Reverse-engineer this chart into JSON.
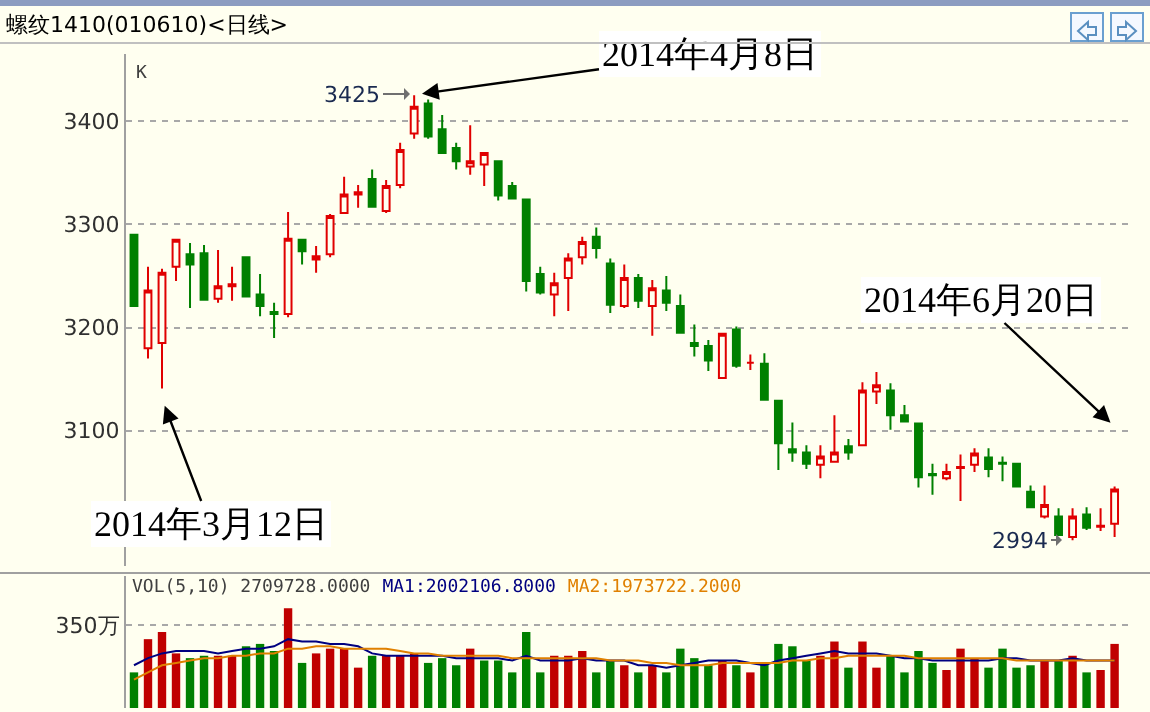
{
  "chart_data": [
    {
      "type": "candlestick",
      "title": "螺纹1410(010610)<日线>",
      "categories": [
        null,
        null,
        null,
        null,
        null,
        null,
        null,
        null,
        null,
        null,
        null,
        null,
        null,
        null,
        null,
        null,
        null,
        null,
        null,
        null,
        null,
        null,
        null,
        null,
        null,
        null,
        null,
        null,
        null,
        null,
        null,
        null,
        null,
        null,
        null,
        null,
        null,
        null,
        null,
        null,
        null,
        null,
        null,
        null,
        null,
        null,
        null,
        null,
        null,
        null,
        null,
        null,
        null,
        null,
        null,
        null,
        null,
        null,
        null,
        null,
        null,
        null,
        null,
        null,
        null,
        null,
        null,
        null,
        null,
        null,
        null
      ],
      "ohlc": [
        [
          3290,
          3290,
          3221,
          3221
        ],
        [
          3180,
          3259,
          3170,
          3236
        ],
        [
          3185,
          3257,
          3141,
          3253
        ],
        [
          3259,
          3285,
          3245,
          3285
        ],
        [
          3271,
          3282,
          3219,
          3261
        ],
        [
          3272,
          3280,
          3226,
          3227
        ],
        [
          3228,
          3275,
          3224,
          3240
        ],
        [
          3240,
          3259,
          3226,
          3242
        ],
        [
          3268,
          3268,
          3230,
          3230
        ],
        [
          3232,
          3252,
          3211,
          3221
        ],
        [
          3215,
          3224,
          3190,
          3213
        ],
        [
          3213,
          3312,
          3210,
          3286
        ],
        [
          3285,
          3285,
          3261,
          3274
        ],
        [
          3266,
          3279,
          3253,
          3269
        ],
        [
          3271,
          3310,
          3268,
          3308
        ],
        [
          3311,
          3346,
          3310,
          3329
        ],
        [
          3329,
          3338,
          3316,
          3331
        ],
        [
          3344,
          3353,
          3316,
          3317
        ],
        [
          3313,
          3343,
          3311,
          3337
        ],
        [
          3338,
          3379,
          3335,
          3372
        ],
        [
          3388,
          3425,
          3383,
          3414
        ],
        [
          3417,
          3421,
          3383,
          3385
        ],
        [
          3392,
          3406,
          3368,
          3369
        ],
        [
          3374,
          3379,
          3353,
          3361
        ],
        [
          3356,
          3396,
          3348,
          3361
        ],
        [
          3358,
          3369,
          3337,
          3369
        ],
        [
          3361,
          3361,
          3323,
          3328
        ],
        [
          3337,
          3341,
          3324,
          3325
        ],
        [
          3324,
          3324,
          3235,
          3245
        ],
        [
          3252,
          3259,
          3232,
          3234
        ],
        [
          3232,
          3253,
          3211,
          3243
        ],
        [
          3248,
          3272,
          3216,
          3267
        ],
        [
          3268,
          3288,
          3261,
          3283
        ],
        [
          3288,
          3297,
          3267,
          3277
        ],
        [
          3262,
          3267,
          3214,
          3222
        ],
        [
          3221,
          3261,
          3219,
          3248
        ],
        [
          3248,
          3252,
          3219,
          3226
        ],
        [
          3221,
          3246,
          3192,
          3238
        ],
        [
          3236,
          3250,
          3216,
          3224
        ],
        [
          3221,
          3232,
          3195,
          3195
        ],
        [
          3185,
          3203,
          3172,
          3182
        ],
        [
          3182,
          3188,
          3158,
          3168
        ],
        [
          3151,
          3194,
          3151,
          3194
        ],
        [
          3198,
          3201,
          3161,
          3163
        ],
        [
          3166,
          3174,
          3159,
          3166
        ],
        [
          3165,
          3175,
          3129,
          3130
        ],
        [
          3129,
          3129,
          3062,
          3088
        ],
        [
          3082,
          3108,
          3070,
          3079
        ],
        [
          3079,
          3086,
          3063,
          3068
        ],
        [
          3067,
          3086,
          3054,
          3075
        ],
        [
          3070,
          3115,
          3070,
          3079
        ],
        [
          3085,
          3092,
          3072,
          3079
        ],
        [
          3086,
          3147,
          3086,
          3139
        ],
        [
          3138,
          3157,
          3126,
          3144
        ],
        [
          3139,
          3146,
          3101,
          3115
        ],
        [
          3115,
          3125,
          3109,
          3109
        ],
        [
          3107,
          3107,
          3045,
          3055
        ],
        [
          3058,
          3068,
          3038,
          3057
        ],
        [
          3054,
          3068,
          3052,
          3060
        ],
        [
          3064,
          3077,
          3032,
          3065
        ],
        [
          3067,
          3083,
          3060,
          3078
        ],
        [
          3074,
          3083,
          3055,
          3063
        ],
        [
          3069,
          3075,
          3051,
          3068
        ],
        [
          3068,
          3068,
          3045,
          3046
        ],
        [
          3041,
          3047,
          3025,
          3026
        ],
        [
          3017,
          3047,
          3015,
          3028
        ],
        [
          3017,
          3025,
          2999,
          2999
        ],
        [
          2997,
          3025,
          2994,
          3017
        ],
        [
          3019,
          3026,
          3004,
          3006
        ],
        [
          3007,
          3025,
          3003,
          3008
        ],
        [
          3010,
          3046,
          2997,
          3043
        ]
      ],
      "ylim": [
        2969,
        3465
      ],
      "yticks": [
        3100,
        3200,
        3300,
        3400
      ],
      "grid": "y",
      "annotations": [
        "K",
        "2014年3月12日",
        "2014年4月8日",
        "3425",
        "2014年6月20日",
        "2994"
      ]
    },
    {
      "type": "bar",
      "categories": [
        null,
        null,
        null,
        null,
        null,
        null,
        null,
        null,
        null,
        null,
        null,
        null,
        null,
        null,
        null,
        null,
        null,
        null,
        null,
        null,
        null,
        null,
        null,
        null,
        null,
        null,
        null,
        null,
        null,
        null,
        null,
        null,
        null,
        null,
        null,
        null,
        null,
        null,
        null,
        null,
        null,
        null,
        null,
        null,
        null,
        null,
        null,
        null,
        null,
        null,
        null,
        null,
        null,
        null,
        null,
        null,
        null,
        null,
        null,
        null,
        null,
        null,
        null,
        null,
        null,
        null,
        null,
        null,
        null,
        null,
        null
      ],
      "series": [
        {
          "type": "bar",
          "values": [
            150,
            290,
            320,
            230,
            210,
            220,
            220,
            220,
            260,
            270,
            240,
            420,
            190,
            230,
            250,
            250,
            170,
            220,
            220,
            220,
            230,
            190,
            210,
            180,
            250,
            200,
            200,
            150,
            320,
            150,
            220,
            220,
            240,
            150,
            200,
            180,
            150,
            180,
            150,
            250,
            210,
            180,
            200,
            180,
            150,
            190,
            270,
            260,
            200,
            220,
            280,
            170,
            280,
            170,
            220,
            150,
            240,
            190,
            160,
            250,
            210,
            170,
            250,
            170,
            180,
            200,
            200,
            220,
            150,
            160,
            270
          ],
          "colors": [
            "#008000",
            "#c00000",
            "#c00000",
            "#c00000",
            "#008000",
            "#008000",
            "#c00000",
            "#c00000",
            "#008000",
            "#008000",
            "#008000",
            "#c00000",
            "#008000",
            "#c00000",
            "#c00000",
            "#c00000",
            "#c00000",
            "#008000",
            "#c00000",
            "#c00000",
            "#c00000",
            "#008000",
            "#008000",
            "#008000",
            "#c00000",
            "#008000",
            "#008000",
            "#008000",
            "#008000",
            "#008000",
            "#c00000",
            "#c00000",
            "#c00000",
            "#008000",
            "#008000",
            "#c00000",
            "#008000",
            "#c00000",
            "#008000",
            "#008000",
            "#008000",
            "#008000",
            "#c00000",
            "#008000",
            "#c00000",
            "#008000",
            "#008000",
            "#008000",
            "#008000",
            "#c00000",
            "#c00000",
            "#008000",
            "#c00000",
            "#c00000",
            "#008000",
            "#008000",
            "#008000",
            "#008000",
            "#c00000",
            "#c00000",
            "#c00000",
            "#008000",
            "#008000",
            "#008000",
            "#008000",
            "#c00000",
            "#008000",
            "#c00000",
            "#008000",
            "#c00000",
            "#c00000"
          ]
        },
        {
          "type": "line",
          "name": "MA1:2002106.8000",
          "color": "#000080",
          "values": [
            180,
            210,
            230,
            240,
            240,
            240,
            230,
            240,
            250,
            250,
            260,
            290,
            280,
            280,
            270,
            270,
            260,
            230,
            220,
            220,
            220,
            220,
            220,
            210,
            210,
            210,
            210,
            200,
            220,
            200,
            200,
            200,
            210,
            200,
            200,
            200,
            180,
            180,
            170,
            180,
            190,
            200,
            200,
            200,
            190,
            180,
            200,
            210,
            220,
            230,
            240,
            230,
            230,
            230,
            220,
            210,
            210,
            200,
            200,
            200,
            200,
            200,
            210,
            210,
            200,
            200,
            200,
            210,
            200,
            200,
            200
          ]
        },
        {
          "type": "line",
          "name": "MA2:1973722.2000",
          "color": "#e08000",
          "values": [
            120,
            150,
            180,
            190,
            200,
            210,
            210,
            220,
            220,
            230,
            230,
            250,
            250,
            260,
            260,
            250,
            250,
            250,
            250,
            240,
            230,
            230,
            220,
            220,
            220,
            220,
            220,
            210,
            210,
            210,
            210,
            210,
            210,
            210,
            200,
            200,
            200,
            190,
            190,
            180,
            180,
            180,
            190,
            190,
            190,
            190,
            190,
            200,
            200,
            210,
            210,
            220,
            220,
            220,
            220,
            220,
            210,
            210,
            210,
            210,
            210,
            210,
            210,
            200,
            200,
            200,
            200,
            200,
            200,
            200,
            200
          ]
        }
      ],
      "ylim": [
        0,
        556
      ],
      "yticks": [
        {
          "value": 350,
          "label": "350万"
        }
      ],
      "grid": "y",
      "annotations": [
        "VOL(5,10) 2709728.0000"
      ]
    }
  ]
}
